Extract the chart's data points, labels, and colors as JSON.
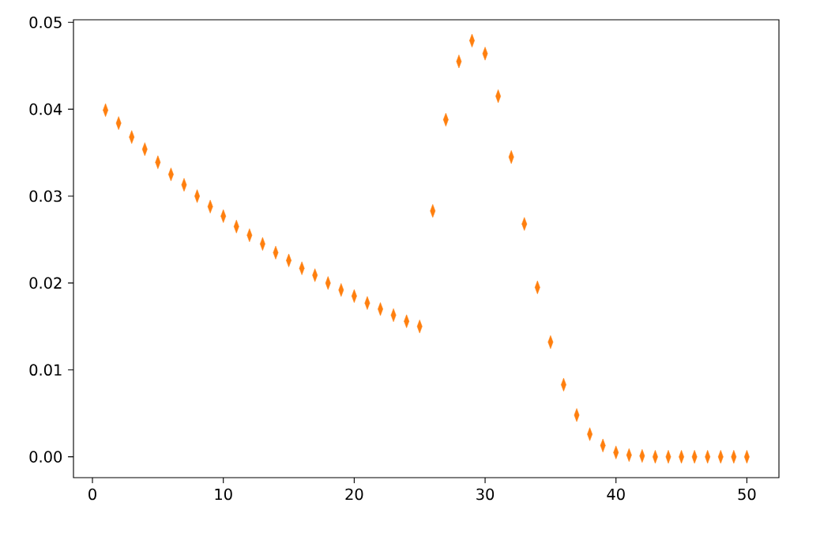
{
  "chart_data": {
    "type": "scatter",
    "marker": "diamond",
    "color": "#ff7f0e",
    "x": [
      1,
      2,
      3,
      4,
      5,
      6,
      7,
      8,
      9,
      10,
      11,
      12,
      13,
      14,
      15,
      16,
      17,
      18,
      19,
      20,
      21,
      22,
      23,
      24,
      25,
      26,
      27,
      28,
      29,
      30,
      31,
      32,
      33,
      34,
      35,
      36,
      37,
      38,
      39,
      40,
      41,
      42,
      43,
      44,
      45,
      46,
      47,
      48,
      49,
      50
    ],
    "values": [
      0.0399,
      0.0384,
      0.0368,
      0.0354,
      0.0339,
      0.0325,
      0.0313,
      0.03,
      0.0288,
      0.0277,
      0.0265,
      0.0255,
      0.0245,
      0.0235,
      0.0226,
      0.0217,
      0.0209,
      0.02,
      0.0192,
      0.0185,
      0.0177,
      0.017,
      0.0163,
      0.0156,
      0.015,
      0.0283,
      0.0388,
      0.0455,
      0.0479,
      0.0464,
      0.0415,
      0.0345,
      0.0268,
      0.0195,
      0.0132,
      0.0083,
      0.0048,
      0.0026,
      0.0013,
      0.0005,
      0.0002,
      0.0001,
      0,
      0,
      0,
      0,
      0,
      0,
      0,
      0
    ],
    "xlim": [
      -1.45,
      52.45
    ],
    "ylim": [
      -0.0024,
      0.0503
    ],
    "xticks": [
      0,
      10,
      20,
      30,
      40,
      50
    ],
    "yticks": [
      {
        "value": 0,
        "label": "0.00"
      },
      {
        "value": 0.01,
        "label": "0.01"
      },
      {
        "value": 0.02,
        "label": "0.02"
      },
      {
        "value": 0.03,
        "label": "0.03"
      },
      {
        "value": 0.04,
        "label": "0.04"
      },
      {
        "value": 0.05,
        "label": "0.05"
      }
    ]
  }
}
